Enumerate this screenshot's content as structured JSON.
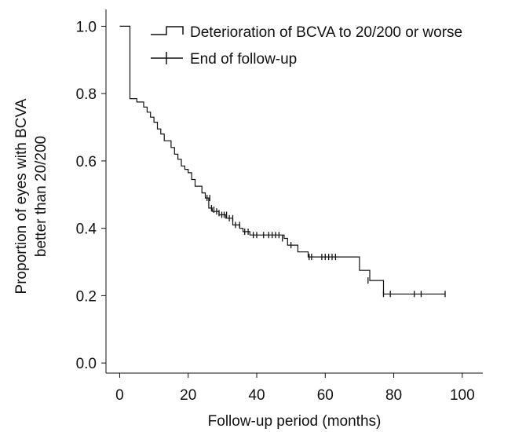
{
  "chart_data": {
    "type": "line",
    "title": "",
    "xlabel": "Follow-up period (months)",
    "ylabel_lines": [
      "Proportion of eyes with BCVA",
      "better than 20/200"
    ],
    "xlim": [
      -4,
      106
    ],
    "ylim": [
      -0.03,
      1.05
    ],
    "xticks": [
      "0",
      "20",
      "40",
      "60",
      "80",
      "100"
    ],
    "yticks": [
      "0.0",
      "0.2",
      "0.4",
      "0.6",
      "0.8",
      "1.0"
    ],
    "grid": false,
    "legend_position": "top-right",
    "series": [
      {
        "name": "Deterioration of BCVA to 20/200 or worse",
        "style": "step",
        "x": [
          0,
          3,
          3,
          5,
          7,
          8,
          9,
          10,
          11,
          12,
          13,
          15,
          16,
          17,
          18,
          19,
          20,
          21,
          22,
          24,
          25,
          26,
          27,
          29,
          31,
          33,
          35,
          36,
          38,
          48,
          49,
          52,
          55,
          70,
          73,
          77,
          95
        ],
        "y": [
          1.0,
          1.0,
          0.785,
          0.775,
          0.76,
          0.745,
          0.73,
          0.715,
          0.695,
          0.68,
          0.66,
          0.64,
          0.62,
          0.605,
          0.585,
          0.575,
          0.565,
          0.545,
          0.525,
          0.505,
          0.49,
          0.46,
          0.45,
          0.44,
          0.43,
          0.41,
          0.4,
          0.39,
          0.38,
          0.37,
          0.35,
          0.33,
          0.315,
          0.275,
          0.245,
          0.205,
          0.205
        ]
      },
      {
        "name": "End of follow-up",
        "style": "censor-marks",
        "x": [
          25.5,
          26.3,
          26.8,
          27.5,
          28.3,
          29.0,
          29.8,
          30.5,
          31.2,
          32.0,
          33.0,
          33.8,
          35.0,
          36.5,
          37.5,
          39.0,
          40.0,
          42.0,
          43.5,
          44.5,
          45.5,
          46.5,
          47.5,
          50.0,
          55.3,
          56.0,
          59.0,
          60.0,
          61.0,
          62.0,
          63.0,
          72.5,
          77.0,
          79.0,
          86.0,
          88.0,
          95.0
        ],
        "y": [
          0.49,
          0.49,
          0.46,
          0.455,
          0.45,
          0.445,
          0.44,
          0.44,
          0.44,
          0.43,
          0.43,
          0.41,
          0.41,
          0.39,
          0.39,
          0.38,
          0.38,
          0.38,
          0.38,
          0.38,
          0.38,
          0.38,
          0.37,
          0.35,
          0.315,
          0.315,
          0.315,
          0.315,
          0.315,
          0.315,
          0.315,
          0.245,
          0.205,
          0.205,
          0.205,
          0.205,
          0.205
        ]
      }
    ]
  }
}
